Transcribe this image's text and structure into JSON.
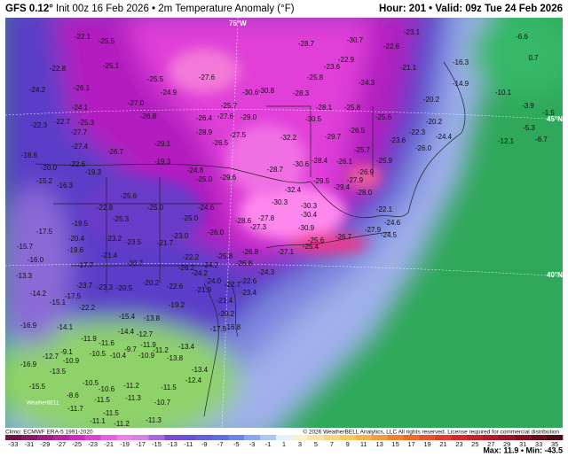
{
  "header": {
    "model": "GFS 0.12°",
    "title": "Init 00z 16 Feb 2026 • 2m Temperature Anomaly (°F)",
    "valid": "Hour: 201 • Valid: 09z Tue 24 Feb 2026"
  },
  "map": {
    "graticule": [
      "75°W",
      "45°N",
      "40°N"
    ],
    "logo": "WeatherBELL",
    "labels": [
      "-22.1",
      "-25.5",
      "-25.1",
      "-22.8",
      "-25.5",
      "-27.6",
      "-24.2",
      "-26.1",
      "-27.0",
      "-24.9",
      "-24.1",
      "-22.3",
      "-22.7",
      "-25.3",
      "-26.8",
      "-26.4",
      "-25.7",
      "-27.6",
      "-29.0",
      "-30.6",
      "-30.8",
      "-28.7",
      "-28.3",
      "-25.8",
      "-28.1",
      "-30.5",
      "-25.8",
      "-23.6",
      "-22.9",
      "-24.3",
      "-30.7",
      "-22.6",
      "-23.1",
      "-21.1",
      "-16.3",
      "-14.9",
      "-10.1",
      "-6.6",
      "0.7",
      "-20.2",
      "-20.2",
      "-25.6",
      "-23.6",
      "-22.3",
      "-26.0",
      "-24.4",
      "-26.5",
      "-29.7",
      "-32.2",
      "-27.5",
      "-26.5",
      "-28.9",
      "-29.1",
      "-26.7",
      "-27.7",
      "-27.4",
      "-22.6",
      "-20.0",
      "-18.6",
      "-15.2",
      "-16.3",
      "-19.3",
      "-19.3",
      "-24.8",
      "-25.0",
      "-29.6",
      "-28.7",
      "-30.6",
      "-28.4",
      "-26.1",
      "-26.9",
      "-25.9",
      "-25.7",
      "-29.4",
      "-27.9",
      "-28.0",
      "-29.5",
      "-32.4",
      "-30.3",
      "-30.4",
      "-30.3",
      "-22.1",
      "-24.6",
      "-27.9",
      "-24.5",
      "-26.7",
      "-30.9",
      "-25.6",
      "-27.8",
      "-28.6",
      "-27.3",
      "-26.0",
      "-23.0",
      "-25.0",
      "-24.6",
      "-25.0",
      "-25.6",
      "-22.8",
      "-25.3",
      "-19.5",
      "-20.4",
      "-19.6",
      "-17.5",
      "-15.7",
      "-16.0",
      "-13.3",
      "-23.2",
      "-23.5",
      "-21.7",
      "-21.4",
      "-20.7",
      "-17.7",
      "-26.8",
      "-27.1",
      "-25.4",
      "-26.8",
      "-24.3",
      "-22.6",
      "-25.8",
      "-22.2",
      "-24.2",
      "-24.0",
      "-24.2",
      "-26.2",
      "-20.2",
      "-22.6",
      "-21.9",
      "-22.7",
      "-23.4",
      "-23.7",
      "-23.3",
      "-20.5",
      "-14.2",
      "-17.5",
      "-22.2",
      "-15.1",
      "-15.4",
      "-13.8",
      "-21.4",
      "-19.2",
      "-20.2",
      "-16.8",
      "-17.5",
      "-16.9",
      "-14.1",
      "-14.4",
      "-12.7",
      "-11.9",
      "-11.9",
      "-11.6",
      "-9.7",
      "-13.4",
      "-13.8",
      "-9.1",
      "-10.5",
      "-16.9",
      "-12.7",
      "-10.9",
      "-10.4",
      "-10.9",
      "-11.2",
      "-13.5",
      "-13.4",
      "-15.5",
      "-10.5",
      "-10.6",
      "-11.2",
      "-11.5",
      "-12.4",
      "-8.6",
      "-11.5",
      "-11.7",
      "-11.5",
      "-11.3",
      "-10.7",
      "-11.1",
      "-11.2",
      "-11.3",
      "-1.5",
      "-5.3",
      "-3.9",
      "-6.7",
      "-12.1"
    ]
  },
  "colorbar": {
    "ticks": [
      -33,
      -31,
      -29,
      -27,
      -25,
      -23,
      -21,
      -19,
      -17,
      -15,
      -13,
      -11,
      -9,
      -7,
      -5,
      -3,
      -1,
      1,
      3,
      5,
      7,
      9,
      11,
      13,
      15,
      17,
      19,
      21,
      23,
      25,
      27,
      29,
      31,
      33,
      35
    ]
  },
  "footer": {
    "climo": "Climo: ECMWF ERA-5 1991-2020",
    "copyright": "© 2026 WeatherBELL Analytics, LLC All rights reserved. License required for commercial distribution",
    "maxmin": "Max: 11.9 • Min: -43.5"
  }
}
